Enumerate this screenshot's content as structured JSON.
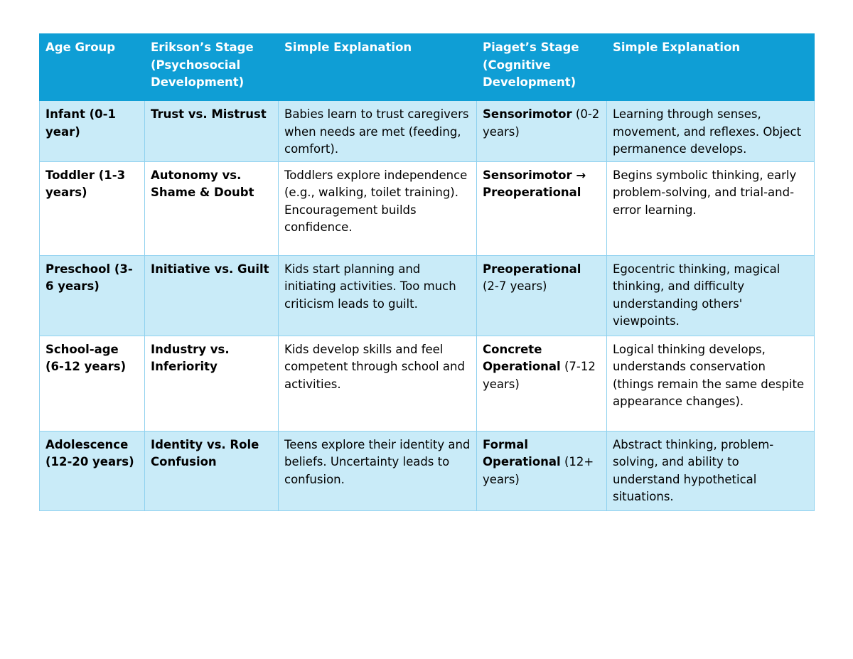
{
  "table": {
    "headers": [
      "Age Group",
      "Erikson’s Stage (Psychosocial Development)",
      "Simple Explanation",
      "Piaget’s Stage (Cognitive Development)",
      "Simple Explanation"
    ],
    "rows": [
      {
        "age": "Infant (0-1 year)",
        "erikson": "Trust vs. Mistrust",
        "erikson_explanation": "Babies learn to trust caregivers when needs are met (feeding, comfort).",
        "piaget_stage": "Sensorimotor",
        "piaget_years": " (0-2 years)",
        "piaget_explanation": "Learning through senses, movement, and reflexes. Object permanence develops."
      },
      {
        "age": "Toddler (1-3 years)",
        "erikson": "Autonomy vs. Shame & Doubt",
        "erikson_explanation": "Toddlers explore independence (e.g., walking, toilet training). Encouragement builds confidence.",
        "piaget_stage": "Sensorimotor → Preoperational",
        "piaget_years": "",
        "piaget_explanation": "Begins symbolic thinking, early problem-solving, and trial-and-error learning."
      },
      {
        "age": "Preschool (3-6 years)",
        "erikson": "Initiative vs. Guilt",
        "erikson_explanation": "Kids start planning and initiating activities. Too much criticism leads to guilt.",
        "piaget_stage": "Preoperational",
        "piaget_years": " (2-7 years)",
        "piaget_explanation": "Egocentric thinking, magical thinking, and difficulty understanding others' viewpoints."
      },
      {
        "age": "School-age (6-12 years)",
        "erikson": "Industry vs. Inferiority",
        "erikson_explanation": "Kids develop skills and feel competent through school and activities.",
        "piaget_stage": "Concrete Operational",
        "piaget_years": " (7-12 years)",
        "piaget_explanation": "Logical thinking develops, understands conservation (things remain the same despite appearance changes)."
      },
      {
        "age": "Adolescence (12-20 years)",
        "erikson": "Identity vs. Role Confusion",
        "erikson_explanation": "Teens explore their identity and beliefs. Uncertainty leads to confusion.",
        "piaget_stage": "Formal Operational",
        "piaget_years": " (12+ years)",
        "piaget_explanation": "Abstract thinking, problem-solving, and ability to understand hypothetical situations."
      }
    ]
  },
  "colors": {
    "header_bg": "#0f9ed5",
    "shaded_row": "#c9ebf8",
    "border": "#8fd1ef"
  }
}
